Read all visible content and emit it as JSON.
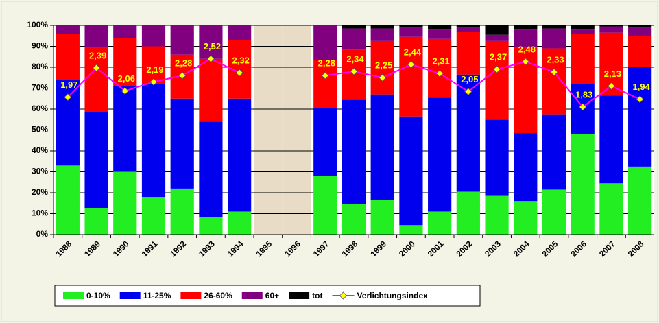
{
  "chart_data": {
    "type": "stacked_bar_line",
    "categories": [
      "1988",
      "1989",
      "1990",
      "1991",
      "1992",
      "1993",
      "1994",
      "1995",
      "1996",
      "1997",
      "1998",
      "1999",
      "2000",
      "2001",
      "2002",
      "2003",
      "2004",
      "2005",
      "2006",
      "2007",
      "2008"
    ],
    "series": [
      {
        "name": "0-10%",
        "color": "#22ee22",
        "values": [
          33,
          12.5,
          30,
          18,
          22,
          8.5,
          11,
          null,
          null,
          28,
          14.5,
          16.5,
          4.5,
          11,
          20.5,
          18.5,
          16,
          21.5,
          48,
          24.5,
          32.5
        ]
      },
      {
        "name": "11-25%",
        "color": "#0000ee",
        "values": [
          41,
          46,
          41,
          54,
          43,
          45.5,
          54,
          null,
          null,
          32.5,
          50,
          50.5,
          52,
          54.5,
          56,
          36.5,
          32.5,
          36,
          24,
          42,
          47.5
        ]
      },
      {
        "name": "26-60%",
        "color": "#ff0000",
        "values": [
          22,
          31,
          23,
          18,
          21,
          30,
          28,
          null,
          null,
          23,
          24,
          25.5,
          38,
          28,
          20.5,
          37.5,
          41,
          31.5,
          24,
          30,
          15
        ]
      },
      {
        "name": "60+",
        "color": "#800080",
        "values": [
          4,
          10.5,
          6,
          10,
          14,
          16,
          7,
          null,
          null,
          16.5,
          10,
          6,
          4.5,
          4.5,
          2,
          3,
          8.5,
          9.5,
          2,
          3,
          4
        ]
      },
      {
        "name": "tot",
        "color": "#000000",
        "values": [
          0,
          0,
          0,
          0,
          0,
          0,
          0,
          null,
          null,
          0,
          1.5,
          1.5,
          1,
          2,
          1,
          4.5,
          2,
          1.5,
          2,
          0.5,
          1
        ]
      },
      {
        "name": "Verlichtungsindex",
        "color": "#ff00ff",
        "axis": "y2",
        "values": [
          1.97,
          2.39,
          2.06,
          2.19,
          2.28,
          2.52,
          2.32,
          null,
          null,
          2.28,
          2.34,
          2.25,
          2.44,
          2.31,
          2.05,
          2.37,
          2.48,
          2.33,
          1.83,
          2.13,
          1.94
        ],
        "value_labels": [
          "1,97",
          "2,39",
          "2,06",
          "2,19",
          "2,28",
          "2,52",
          "2,32",
          null,
          null,
          "2,28",
          "2,34",
          "2,25",
          "2,44",
          "2,31",
          "2,05",
          "2,37",
          "2,48",
          "2,33",
          "1,83",
          "2,13",
          "1,94"
        ]
      }
    ],
    "ylim": [
      0,
      100
    ],
    "yticks": [
      {
        "value": 0,
        "label": "0%"
      },
      {
        "value": 10,
        "label": "10%"
      },
      {
        "value": 20,
        "label": "20%"
      },
      {
        "value": 30,
        "label": "30%"
      },
      {
        "value": 40,
        "label": "40%"
      },
      {
        "value": 50,
        "label": "50%"
      },
      {
        "value": 60,
        "label": "60%"
      },
      {
        "value": 70,
        "label": "70%"
      },
      {
        "value": 80,
        "label": "80%"
      },
      {
        "value": 90,
        "label": "90%"
      },
      {
        "value": 100,
        "label": "100%"
      }
    ],
    "y2lim": [
      0,
      3
    ],
    "grid": true,
    "legend": "bottom"
  }
}
